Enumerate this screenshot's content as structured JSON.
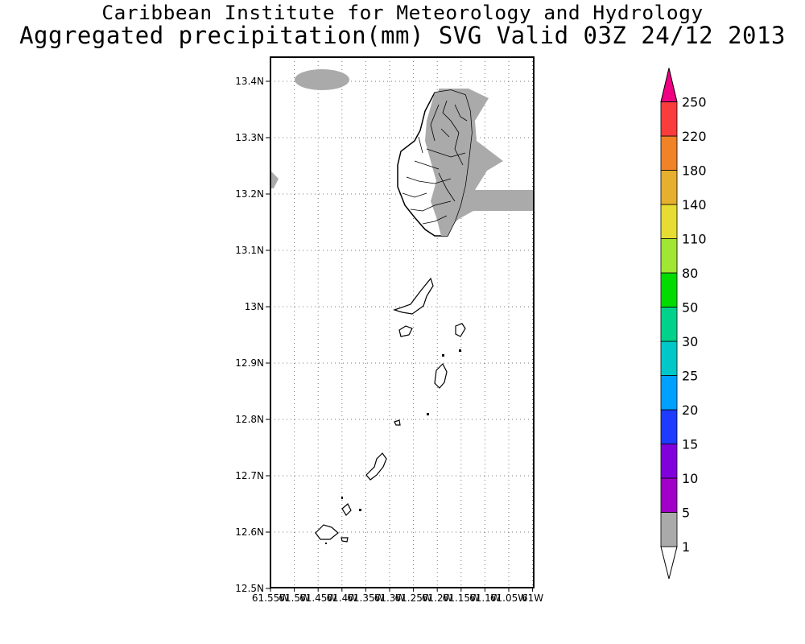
{
  "header": {
    "org": "Caribbean Institute for Meteorology and Hydrology",
    "title": "Aggregated precipitation(mm) SVG Valid 03Z 24/12 2013"
  },
  "map": {
    "region": "St. Vincent and the Grenadines",
    "lat_ticks": [
      "13.4N",
      "13.3N",
      "13.2N",
      "13.1N",
      "13N",
      "12.9N",
      "12.8N",
      "12.7N",
      "12.6N",
      "12.5N"
    ],
    "lon_ticks": [
      "61.55W",
      "61.5W",
      "61.45W",
      "61.4W",
      "61.35W",
      "61.3W",
      "61.25W",
      "61.2W",
      "61.15W",
      "61.1W",
      "61.05W",
      "61W"
    ],
    "precip_fill_color": "#aaaaaa",
    "grid": "dotted"
  },
  "legend": {
    "levels": [
      "1",
      "5",
      "10",
      "15",
      "20",
      "25",
      "30",
      "50",
      "80",
      "110",
      "140",
      "180",
      "220",
      "250"
    ],
    "colors": [
      "#aaaaaa",
      "#a000c8",
      "#8200dc",
      "#1e3cff",
      "#00a0ff",
      "#00c8c8",
      "#00d28c",
      "#00dc00",
      "#a0e632",
      "#e6dc32",
      "#e6af2d",
      "#f08228",
      "#fa3c3c",
      "#f00082"
    ]
  }
}
